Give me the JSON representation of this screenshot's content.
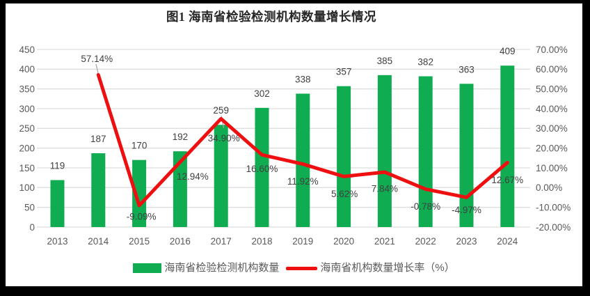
{
  "title": "图1 海南省检验检测机构数量增长情况",
  "colors": {
    "bar": "#0FAC52",
    "line": "#EE1010",
    "grid": "#dedede",
    "axis_text": "#595959",
    "data_label": "#404040",
    "leader": "#a6a6a6",
    "title_text": "#262626",
    "frame": "#000000",
    "canvas": "#ffffff"
  },
  "legend": [
    {
      "label": "海南省检验检测机构数量",
      "type": "bar"
    },
    {
      "label": "海南省机构数量增长率（%）",
      "type": "line"
    }
  ],
  "chart_data": {
    "type": "combo-bar-line",
    "title": "图1 海南省检验检测机构数量增长情况",
    "categories": [
      "2013",
      "2014",
      "2015",
      "2016",
      "2017",
      "2018",
      "2019",
      "2020",
      "2021",
      "2022",
      "2023",
      "2024"
    ],
    "series": [
      {
        "name": "海南省检验检测机构数量",
        "type": "bar",
        "axis": "left",
        "values": [
          119,
          187,
          170,
          192,
          259,
          302,
          338,
          357,
          385,
          382,
          363,
          409
        ],
        "labels": [
          "119",
          "187",
          "170",
          "192",
          "259",
          "302",
          "338",
          "357",
          "385",
          "382",
          "363",
          "409"
        ]
      },
      {
        "name": "海南省机构数量增长率（%）",
        "type": "line",
        "axis": "right",
        "values": [
          null,
          57.14,
          -9.09,
          12.94,
          34.9,
          16.6,
          11.92,
          5.62,
          7.84,
          -0.78,
          -4.97,
          12.67
        ],
        "labels": [
          "",
          "57.14%",
          "-9.09%",
          "12.94%",
          "34.90%",
          "16.60%",
          "11.92%",
          "5.62%",
          "7.84%",
          "-0.78%",
          "-4.97%",
          "12.67%"
        ]
      }
    ],
    "left_axis": {
      "min": 0,
      "max": 450,
      "step": 50,
      "ticks": [
        "450",
        "400",
        "350",
        "300",
        "250",
        "200",
        "150",
        "100",
        "50",
        "0"
      ]
    },
    "right_axis": {
      "min": -20,
      "max": 70,
      "step": 10,
      "ticks": [
        "70.00%",
        "60.00%",
        "50.00%",
        "40.00%",
        "30.00%",
        "20.00%",
        "10.00%",
        "0.00%",
        "-10.00%",
        "-20.00%"
      ]
    },
    "grid": true,
    "legend_position": "bottom"
  }
}
